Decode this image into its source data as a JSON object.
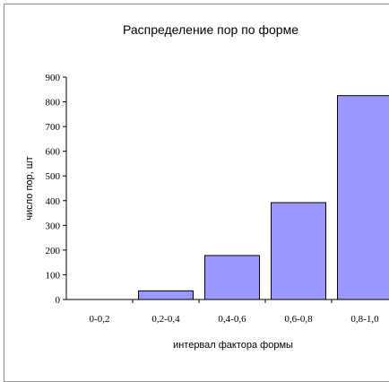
{
  "chart_data": {
    "type": "bar",
    "title": "Распределение пор по форме",
    "xlabel": "интервал фактора формы",
    "ylabel": "число пор, шт",
    "categories": [
      "0-0,2",
      "0,2-0,4",
      "0,4-0,6",
      "0,6-0,8",
      "0,8-1,0"
    ],
    "values": [
      0,
      35,
      178,
      392,
      825
    ],
    "ylim": [
      0,
      900
    ],
    "yticks": [
      "0",
      "100",
      "200",
      "300",
      "400",
      "500",
      "600",
      "700",
      "800",
      "900"
    ],
    "grid": false,
    "legend": "none",
    "bar_color": "#9999ff",
    "bar_edge_color": "#000000"
  }
}
